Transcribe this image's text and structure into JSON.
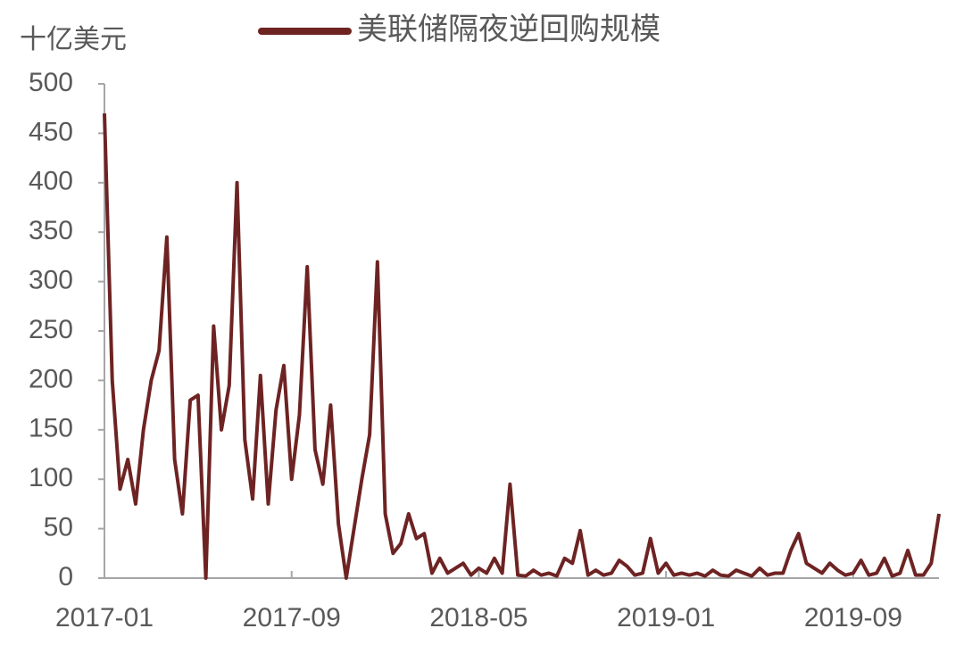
{
  "chart_data": {
    "type": "line",
    "ylabel": "十亿美元",
    "categories": [
      "2017-01",
      null,
      null,
      null,
      null,
      null,
      null,
      null,
      null,
      null,
      null,
      null,
      null,
      null,
      null,
      null,
      null,
      null,
      null,
      null,
      null,
      null,
      null,
      null,
      "2017-09",
      null,
      null,
      null,
      null,
      null,
      null,
      null,
      null,
      null,
      null,
      null,
      null,
      null,
      null,
      null,
      null,
      null,
      null,
      null,
      null,
      null,
      null,
      null,
      "2018-05",
      null,
      null,
      null,
      null,
      null,
      null,
      null,
      null,
      null,
      null,
      null,
      null,
      null,
      null,
      null,
      null,
      null,
      null,
      null,
      null,
      null,
      null,
      null,
      "2019-01",
      null,
      null,
      null,
      null,
      null,
      null,
      null,
      null,
      null,
      null,
      null,
      null,
      null,
      null,
      null,
      null,
      null,
      null,
      null,
      null,
      null,
      null,
      null,
      "2019-09",
      null,
      null,
      null,
      null,
      null,
      null,
      null,
      null,
      null,
      null,
      null
    ],
    "series": [
      {
        "name": "美联储隔夜逆回购规模",
        "color": "#6e2323",
        "values": [
          470,
          200,
          90,
          120,
          75,
          150,
          200,
          230,
          345,
          120,
          65,
          180,
          185,
          0,
          255,
          150,
          195,
          400,
          140,
          80,
          205,
          75,
          170,
          215,
          100,
          165,
          315,
          130,
          95,
          175,
          55,
          0,
          50,
          100,
          145,
          320,
          65,
          25,
          35,
          65,
          40,
          45,
          5,
          20,
          5,
          10,
          15,
          3,
          10,
          5,
          20,
          5,
          95,
          3,
          2,
          8,
          3,
          5,
          2,
          20,
          15,
          48,
          3,
          8,
          3,
          5,
          18,
          12,
          3,
          5,
          40,
          5,
          15,
          3,
          5,
          3,
          5,
          2,
          8,
          3,
          2,
          8,
          5,
          2,
          10,
          3,
          5,
          5,
          28,
          45,
          15,
          10,
          5,
          15,
          8,
          3,
          5,
          18,
          3,
          5,
          20,
          2,
          5,
          28,
          3,
          3,
          15,
          65
        ]
      }
    ],
    "ylim": [
      0,
      500
    ],
    "yticks": [
      0,
      50,
      100,
      150,
      200,
      250,
      300,
      350,
      400,
      450,
      500
    ]
  }
}
